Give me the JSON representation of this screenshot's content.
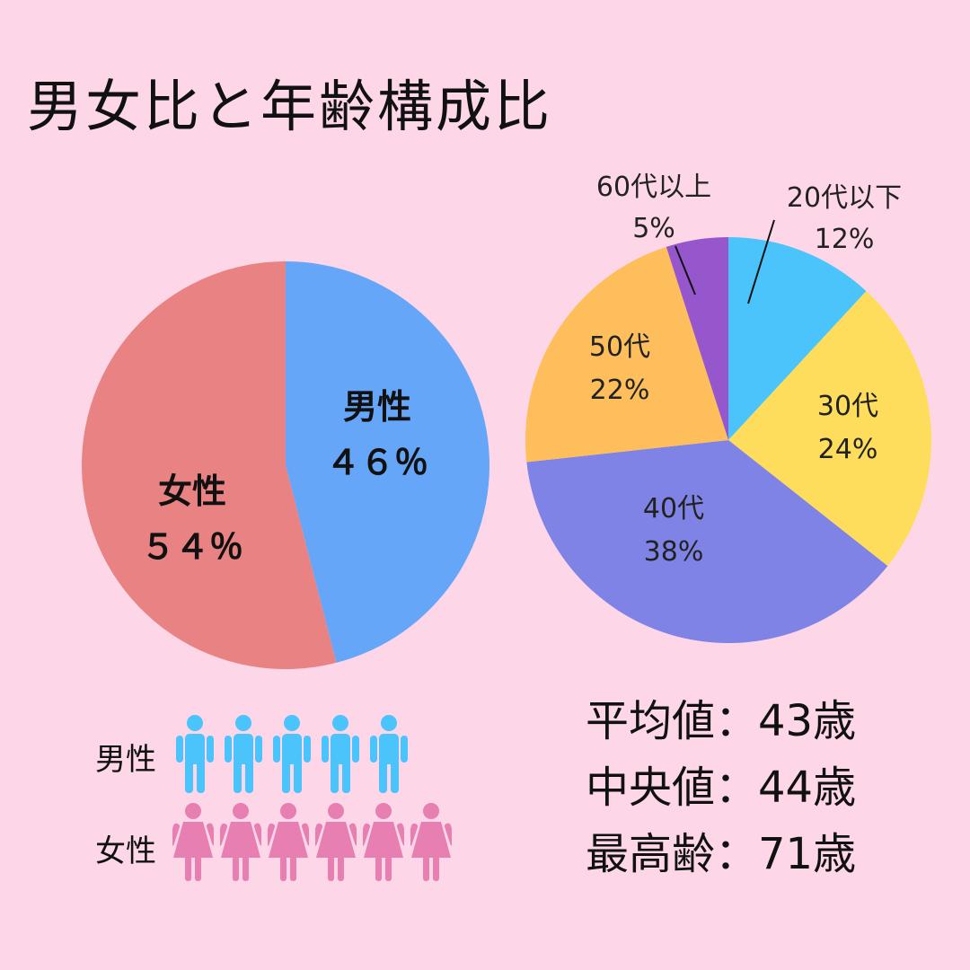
{
  "title": "男女比と年齢構成比",
  "chart_data": [
    {
      "type": "pie",
      "title": "",
      "slices": [
        {
          "label": "男性",
          "value": 46,
          "display": "４６％",
          "color": "#66a6f9"
        },
        {
          "label": "女性",
          "value": 54,
          "display": "５４％",
          "color": "#e98383"
        }
      ]
    },
    {
      "type": "pie",
      "title": "",
      "slices": [
        {
          "label": "20代以下",
          "value": 12,
          "display": "12%",
          "color": "#4ac4fb"
        },
        {
          "label": "30代",
          "value": 24,
          "display": "24%",
          "color": "#fedd5c"
        },
        {
          "label": "40代",
          "value": 38,
          "display": "38%",
          "color": "#8083e6"
        },
        {
          "label": "50代",
          "value": 22,
          "display": "22%",
          "color": "#fdbe5b"
        },
        {
          "label": "60代以上",
          "value": 5,
          "display": "5%",
          "color": "#9657cc"
        }
      ]
    }
  ],
  "pictogram": {
    "male_label": "男性",
    "female_label": "女性",
    "male_count": 5,
    "female_count": 6,
    "male_color": "#4ac4fb",
    "female_color": "#e77fb2"
  },
  "stats": {
    "mean": "平均値：43歳",
    "median": "中央値：44歳",
    "max": "最高齢：71歳"
  }
}
